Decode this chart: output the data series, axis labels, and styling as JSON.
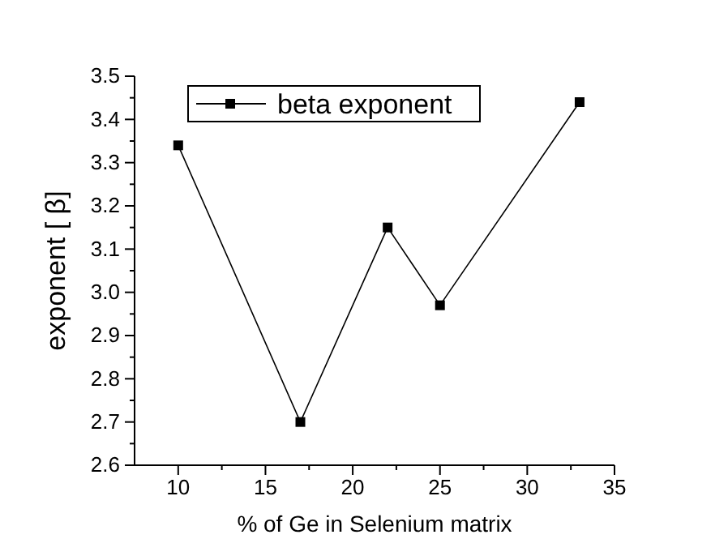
{
  "chart_data": {
    "type": "line",
    "xlabel": "% of Ge in Selenium matrix",
    "ylabel": "exponent [ β]",
    "x": [
      10,
      17,
      22,
      25,
      33
    ],
    "series": [
      {
        "name": "beta exponent",
        "color": "#000000",
        "values": [
          3.34,
          2.7,
          3.15,
          2.97,
          3.44
        ]
      }
    ],
    "xlim": [
      7.5,
      35
    ],
    "xticks": [
      10,
      {
        "value": 12.5,
        "label": null
      },
      15,
      {
        "value": 17.5,
        "label": null
      },
      20,
      {
        "value": 22.5,
        "label": null
      },
      25,
      {
        "value": 27.5,
        "label": null
      },
      30,
      {
        "value": 32.5,
        "label": null
      },
      35
    ],
    "ylim": [
      2.6,
      3.5
    ],
    "yticks": [
      2.6,
      2.7,
      2.8,
      2.9,
      {
        "value": 3,
        "label": "3.0"
      },
      3.1,
      3.2,
      3.3,
      3.4,
      3.5
    ],
    "marker": "square",
    "line_style": "solid",
    "legend": "top left",
    "grid": false
  }
}
